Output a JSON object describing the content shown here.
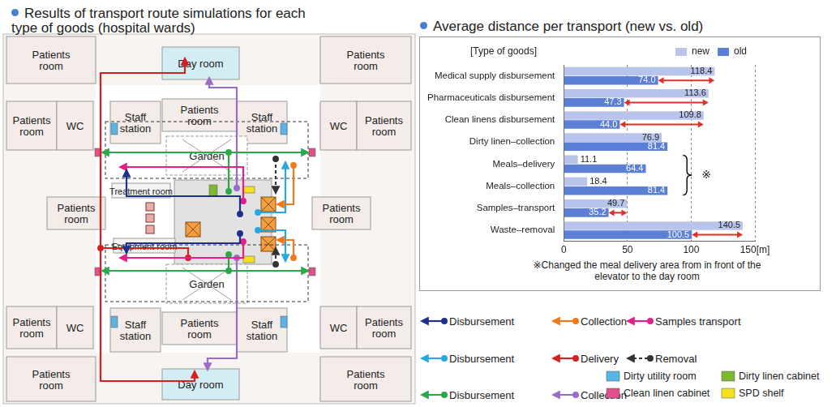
{
  "floor_plan": {
    "title": "Results of transport route simulations for each type of goods (hospital wards)",
    "rooms": [
      "Patients room",
      "Day room",
      "Patients room",
      "Patients room",
      "WC",
      "Staff station",
      "Patients room",
      "Staff station",
      "WC",
      "Patients room",
      "Garden",
      "Patients room",
      "Treatment room",
      "Equipment room",
      "Patients room",
      "Garden",
      "Patients room",
      "WC",
      "Staff station",
      "Patients room",
      "Staff station",
      "WC",
      "Patients room",
      "Patients room",
      "Day room",
      "Patients room"
    ],
    "route_legend": [
      {
        "label": "Disbursement",
        "color": "#1f2f8f",
        "line_style": "solid"
      },
      {
        "label": "Collection",
        "color": "#f07a1a",
        "line_style": "solid"
      },
      {
        "label": "Samples transport",
        "color": "#e0218a",
        "line_style": "solid"
      },
      {
        "label": "Disbursement",
        "color": "#29a8e0",
        "line_style": "solid"
      },
      {
        "label": "Delivery",
        "color": "#d42020",
        "line_style": "solid"
      },
      {
        "label": "Removal",
        "color": "#333333",
        "line_style": "dashed"
      },
      {
        "label": "Disbursement",
        "color": "#2aa84a",
        "line_style": "solid"
      },
      {
        "label": "Collection",
        "color": "#9a6cc8",
        "line_style": "solid"
      }
    ],
    "area_legend": [
      {
        "label": "Dirty utility room",
        "color": "#5ab4e6"
      },
      {
        "label": "Dirty linen cabinet",
        "color": "#7cb832"
      },
      {
        "label": "Clean linen cabinet",
        "color": "#e0508a"
      },
      {
        "label": "SPD shelf",
        "color": "#f5e020"
      }
    ]
  },
  "chart_data": {
    "type": "bar",
    "orientation": "horizontal",
    "title": "Average distance per transport (new vs. old)",
    "y_label": "[Type of goods]",
    "categories": [
      "Medical supply disbursement",
      "Pharmaceuticals disbursement",
      "Clean linens disbursement",
      "Dirty linen–collection",
      "Meals–delivery",
      "Meals–collection",
      "Samples–transport",
      "Waste–removal"
    ],
    "series": [
      {
        "name": "new",
        "color": "#b8c4ec",
        "values": [
          118.4,
          113.6,
          109.8,
          76.9,
          11.1,
          18.4,
          49.7,
          140.5
        ],
        "value_labels": [
          "118.4",
          "113.6",
          "109.8",
          "76.9",
          "11.1",
          "18.4",
          "49.7",
          "140.5"
        ]
      },
      {
        "name": "old",
        "color": "#5a7fd4",
        "values": [
          74.0,
          47.3,
          44.0,
          81.4,
          64.4,
          81.4,
          35.2,
          100.5
        ],
        "value_labels": [
          "74.0",
          "47.3",
          "44.0",
          "81.4",
          "64.4",
          "81.4",
          "35.2",
          "100.5"
        ]
      }
    ],
    "xlim": [
      0,
      150
    ],
    "xticks": [
      0,
      50,
      100,
      {
        "value": 150,
        "label": "150[m]"
      }
    ],
    "grid": true,
    "legend": "top-right",
    "data_labels": true,
    "annotations": [
      {
        "text": "※",
        "categories": [
          "Meals–delivery",
          "Meals–collection"
        ]
      }
    ],
    "note": "※Changed the meal delivery area from in front of the elevator to the day room"
  }
}
